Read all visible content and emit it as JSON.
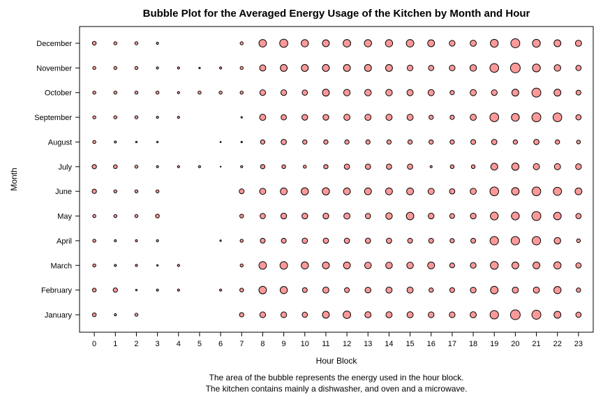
{
  "chart_data": {
    "type": "scatter",
    "subtype": "bubble",
    "title": "Bubble Plot for the Averaged Energy Usage of the Kitchen by Month and Hour",
    "xlabel": "Hour Block",
    "ylabel": "Month",
    "footnotes": [
      "The area of the bubble represents the energy used in the hour block.",
      "The kitchen contains mainly a dishwasher, and oven and a microwave."
    ],
    "x_ticks": [
      0,
      1,
      2,
      3,
      4,
      5,
      6,
      7,
      8,
      9,
      10,
      11,
      12,
      13,
      14,
      15,
      16,
      17,
      18,
      19,
      20,
      21,
      22,
      23
    ],
    "months": [
      "January",
      "February",
      "March",
      "April",
      "May",
      "June",
      "July",
      "August",
      "September",
      "October",
      "November",
      "December"
    ],
    "xlim": [
      -0.7,
      23.7
    ],
    "bubble_color": "#ff9999",
    "bubble_stroke": "#000000",
    "values_note": "relative bubble area",
    "series": [
      {
        "month": "December",
        "values": [
          3,
          2,
          2,
          1,
          0,
          0,
          0,
          2,
          12,
          14,
          11,
          10,
          12,
          11,
          11,
          12,
          10,
          7,
          8,
          13,
          17,
          13,
          10,
          8
        ]
      },
      {
        "month": "November",
        "values": [
          2,
          2,
          2,
          1,
          1,
          0.5,
          1,
          2,
          8,
          10,
          10,
          10,
          10,
          10,
          10,
          7,
          6,
          7,
          9,
          16,
          20,
          13,
          9,
          6
        ]
      },
      {
        "month": "October",
        "values": [
          2,
          2,
          2,
          2,
          1,
          2,
          2,
          2,
          7,
          7,
          6,
          10,
          9,
          9,
          9,
          8,
          8,
          4,
          8,
          7,
          10,
          17,
          10,
          5
        ]
      },
      {
        "month": "September",
        "values": [
          2,
          2,
          2,
          1,
          1,
          0,
          0,
          0.5,
          8,
          6,
          7,
          7,
          8,
          8,
          8,
          8,
          4,
          4,
          8,
          16,
          13,
          17,
          16,
          6
        ]
      },
      {
        "month": "August",
        "values": [
          2,
          1,
          0.5,
          0.5,
          0,
          0,
          0.3,
          0.5,
          4,
          6,
          4,
          4,
          4,
          4,
          4,
          4,
          4,
          4,
          5,
          6,
          4,
          6,
          4,
          3
        ]
      },
      {
        "month": "July",
        "values": [
          4,
          3,
          2,
          1,
          1,
          1,
          0.2,
          1,
          4,
          3,
          2,
          4,
          6,
          6,
          6,
          6,
          1,
          3,
          3,
          10,
          11,
          8,
          8,
          7
        ]
      },
      {
        "month": "June",
        "values": [
          4,
          2,
          2,
          2,
          0,
          0,
          0,
          5,
          8,
          10,
          11,
          11,
          10,
          10,
          10,
          10,
          8,
          6,
          8,
          16,
          12,
          16,
          14,
          10
        ]
      },
      {
        "month": "May",
        "values": [
          2,
          2,
          2,
          3,
          0,
          0,
          0,
          3,
          6,
          7,
          7,
          7,
          8,
          6,
          9,
          12,
          7,
          5,
          7,
          13,
          13,
          17,
          12,
          6
        ]
      },
      {
        "month": "April",
        "values": [
          2,
          1,
          1,
          1,
          0,
          0,
          0.5,
          2,
          5,
          5,
          6,
          6,
          6,
          6,
          6,
          5,
          5,
          4,
          5,
          15,
          15,
          15,
          9,
          3
        ]
      },
      {
        "month": "March",
        "values": [
          2,
          1,
          1,
          0.5,
          1,
          0,
          0,
          2,
          12,
          12,
          11,
          10,
          10,
          9,
          9,
          9,
          10,
          5,
          7,
          13,
          10,
          10,
          11,
          6
        ]
      },
      {
        "month": "February",
        "values": [
          3,
          4,
          0.5,
          1,
          1,
          0,
          1,
          3,
          12,
          11,
          5,
          8,
          5,
          7,
          8,
          8,
          4,
          5,
          7,
          12,
          8,
          8,
          11,
          4
        ]
      },
      {
        "month": "January",
        "values": [
          3,
          1,
          2,
          0,
          0,
          0,
          0,
          4,
          7,
          7,
          6,
          10,
          12,
          8,
          8,
          8,
          7,
          7,
          8,
          15,
          20,
          17,
          10,
          6
        ]
      }
    ]
  }
}
